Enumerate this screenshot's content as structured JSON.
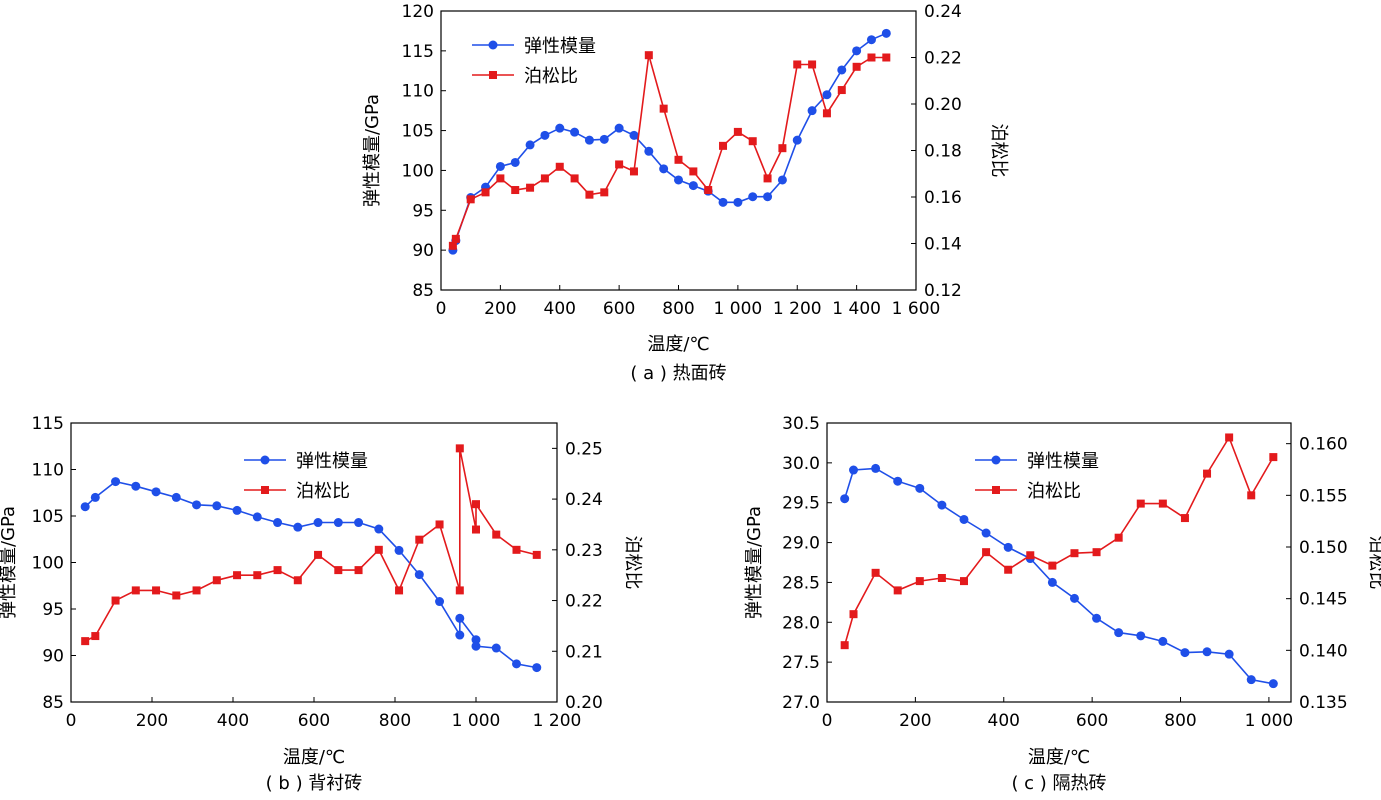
{
  "colors": {
    "modulus": "#1f4fe8",
    "poisson": "#e31a1c"
  },
  "chart_data": [
    {
      "id": "a",
      "type": "line",
      "caption": "( a ) 热面砖",
      "xlabel": "温度/℃",
      "ylabel": "弹性模量/GPa",
      "y2label": "泊松比",
      "xlim": [
        0,
        1600
      ],
      "ylim": [
        85,
        120
      ],
      "y2lim": [
        0.12,
        0.24
      ],
      "xticks": [
        0,
        200,
        400,
        600,
        800,
        1000,
        1200,
        1400,
        1600
      ],
      "xtick_labels": [
        "0",
        "200",
        "400",
        "600",
        "800",
        "1 000",
        "1 200",
        "1 400",
        "1 600"
      ],
      "yticks": [
        85,
        90,
        95,
        100,
        105,
        110,
        115,
        120
      ],
      "ytick_labels": [
        "85",
        "90",
        "95",
        "100",
        "105",
        "110",
        "115",
        "120"
      ],
      "y2ticks": [
        0.12,
        0.14,
        0.16,
        0.18,
        0.2,
        0.22,
        0.24
      ],
      "y2tick_labels": [
        "0.12",
        "0.14",
        "0.16",
        "0.18",
        "0.20",
        "0.22",
        "0.24"
      ],
      "legend_position": "top-left",
      "series": [
        {
          "name": "弹性模量",
          "axis": "left",
          "marker": "circle",
          "color_key": "modulus",
          "x": [
            40,
            50,
            100,
            150,
            200,
            250,
            300,
            350,
            400,
            450,
            500,
            550,
            600,
            650,
            700,
            750,
            800,
            850,
            900,
            950,
            1000,
            1050,
            1100,
            1150,
            1200,
            1250,
            1300,
            1350,
            1400,
            1450,
            1500
          ],
          "y": [
            90.0,
            91.2,
            96.6,
            97.9,
            100.5,
            101.0,
            103.2,
            104.4,
            105.3,
            104.8,
            103.8,
            103.9,
            105.3,
            104.4,
            102.4,
            100.2,
            98.8,
            98.1,
            97.4,
            96.0,
            96.0,
            96.7,
            96.7,
            98.8,
            103.8,
            107.5,
            109.5,
            112.6,
            115.0,
            116.4,
            117.2
          ]
        },
        {
          "name": "泊松比",
          "axis": "right",
          "marker": "square",
          "color_key": "poisson",
          "x": [
            40,
            50,
            100,
            150,
            200,
            250,
            300,
            350,
            400,
            450,
            500,
            550,
            600,
            650,
            700,
            750,
            800,
            850,
            900,
            950,
            1000,
            1050,
            1100,
            1150,
            1200,
            1250,
            1300,
            1350,
            1400,
            1450,
            1500
          ],
          "y": [
            0.139,
            0.142,
            0.159,
            0.162,
            0.168,
            0.163,
            0.164,
            0.168,
            0.173,
            0.168,
            0.161,
            0.162,
            0.174,
            0.171,
            0.221,
            0.198,
            0.176,
            0.171,
            0.163,
            0.182,
            0.188,
            0.184,
            0.168,
            0.181,
            0.217,
            0.217,
            0.196,
            0.206,
            0.216,
            0.22,
            0.22
          ]
        }
      ]
    },
    {
      "id": "b",
      "type": "line",
      "caption": "( b ) 背衬砖",
      "xlabel": "温度/℃",
      "ylabel": "弹性模量/GPa",
      "y2label": "泊松比",
      "xlim": [
        0,
        1200
      ],
      "ylim": [
        85,
        115
      ],
      "y2lim": [
        0.2,
        0.255
      ],
      "xticks": [
        0,
        200,
        400,
        600,
        800,
        1000,
        1200
      ],
      "xtick_labels": [
        "0",
        "200",
        "400",
        "600",
        "800",
        "1 000",
        "1 200"
      ],
      "yticks": [
        85,
        90,
        95,
        100,
        105,
        110,
        115
      ],
      "ytick_labels": [
        "85",
        "90",
        "95",
        "100",
        "105",
        "110",
        "115"
      ],
      "y2ticks": [
        0.2,
        0.21,
        0.22,
        0.23,
        0.24,
        0.25
      ],
      "y2tick_labels": [
        "0.20",
        "0.21",
        "0.22",
        "0.23",
        "0.24",
        "0.25"
      ],
      "legend_position": "top-right",
      "series": [
        {
          "name": "弹性模量",
          "axis": "left",
          "marker": "circle",
          "color_key": "modulus",
          "x": [
            35,
            60,
            110,
            160,
            210,
            260,
            310,
            360,
            410,
            460,
            510,
            560,
            610,
            660,
            710,
            760,
            810,
            860,
            910,
            960,
            960,
            1000,
            1000,
            1050,
            1100,
            1150
          ],
          "y": [
            106.0,
            107.0,
            108.7,
            108.2,
            107.6,
            107.0,
            106.2,
            106.1,
            105.6,
            104.9,
            104.3,
            103.8,
            104.3,
            104.3,
            104.3,
            103.6,
            101.3,
            98.7,
            95.8,
            92.2,
            94.0,
            91.7,
            91.0,
            90.8,
            89.1,
            88.7
          ]
        },
        {
          "name": "泊松比",
          "axis": "right",
          "marker": "square",
          "color_key": "poisson",
          "x": [
            35,
            60,
            110,
            160,
            210,
            260,
            310,
            360,
            410,
            460,
            510,
            560,
            610,
            660,
            710,
            760,
            810,
            860,
            910,
            960,
            960,
            1000,
            1000,
            1050,
            1100,
            1150
          ],
          "y": [
            0.212,
            0.213,
            0.22,
            0.222,
            0.222,
            0.221,
            0.222,
            0.224,
            0.225,
            0.225,
            0.226,
            0.224,
            0.229,
            0.226,
            0.226,
            0.23,
            0.222,
            0.232,
            0.235,
            0.222,
            0.25,
            0.234,
            0.239,
            0.233,
            0.23,
            0.229
          ]
        }
      ]
    },
    {
      "id": "c",
      "type": "line",
      "caption": "( c ) 隔热砖",
      "xlabel": "温度/℃",
      "ylabel": "弹性模量/GPa",
      "y2label": "泊松比",
      "xlim": [
        0,
        1050
      ],
      "ylim": [
        27.0,
        30.5
      ],
      "y2lim": [
        0.135,
        0.162
      ],
      "xticks": [
        0,
        200,
        400,
        600,
        800,
        1000
      ],
      "xtick_labels": [
        "0",
        "200",
        "400",
        "600",
        "800",
        "1 000"
      ],
      "yticks": [
        27.0,
        27.5,
        28.0,
        28.5,
        29.0,
        29.5,
        30.0,
        30.5
      ],
      "ytick_labels": [
        "27.0",
        "27.5",
        "28.0",
        "28.5",
        "29.0",
        "29.5",
        "30.0",
        "30.5"
      ],
      "y2ticks": [
        0.135,
        0.14,
        0.145,
        0.15,
        0.155,
        0.16
      ],
      "y2tick_labels": [
        "0.135",
        "0.140",
        "0.145",
        "0.150",
        "0.155",
        "0.160"
      ],
      "legend_position": "top-right",
      "series": [
        {
          "name": "弹性模量",
          "axis": "left",
          "marker": "circle",
          "color_key": "modulus",
          "x": [
            40,
            60,
            110,
            160,
            210,
            260,
            310,
            360,
            410,
            460,
            510,
            560,
            610,
            660,
            710,
            760,
            810,
            860,
            910,
            960,
            1010
          ],
          "y": [
            29.55,
            29.91,
            29.93,
            29.77,
            29.68,
            29.47,
            29.29,
            29.12,
            28.94,
            28.8,
            28.5,
            28.3,
            28.05,
            27.87,
            27.83,
            27.76,
            27.62,
            27.63,
            27.6,
            27.28,
            27.23
          ]
        },
        {
          "name": "泊松比",
          "axis": "right",
          "marker": "square",
          "color_key": "poisson",
          "x": [
            40,
            60,
            110,
            160,
            210,
            260,
            310,
            360,
            410,
            460,
            510,
            560,
            610,
            660,
            710,
            760,
            810,
            860,
            910,
            960,
            1010
          ],
          "y": [
            0.1405,
            0.1435,
            0.1475,
            0.1458,
            0.1467,
            0.147,
            0.1467,
            0.1495,
            0.1478,
            0.1492,
            0.1482,
            0.1494,
            0.1495,
            0.1509,
            0.1542,
            0.1542,
            0.1528,
            0.1571,
            0.1606,
            0.155,
            0.1587
          ]
        }
      ]
    }
  ]
}
